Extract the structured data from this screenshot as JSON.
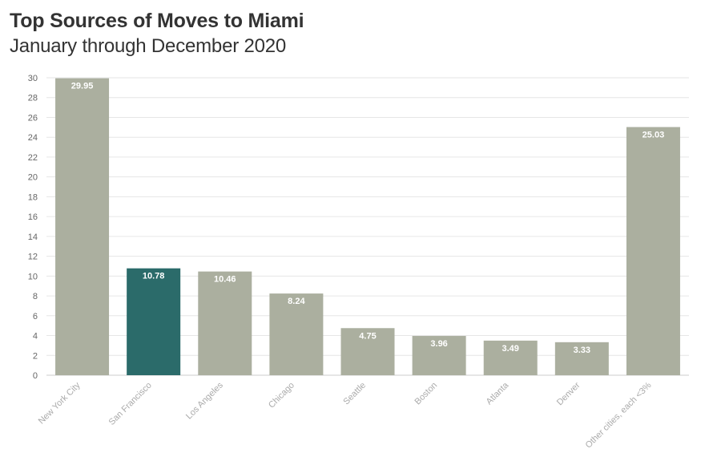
{
  "chart_data": {
    "type": "bar",
    "title": "Top Sources of Moves to Miami",
    "subtitle": "January through December 2020",
    "categories": [
      "New York City",
      "San Francisco",
      "Los Angeles",
      "Chicago",
      "Seattle",
      "Boston",
      "Atlanta",
      "Denver",
      "Other cities, each <3%"
    ],
    "values": [
      29.95,
      10.78,
      10.46,
      8.24,
      4.75,
      3.96,
      3.49,
      3.33,
      25.03
    ],
    "value_labels": [
      "29.95",
      "10.78",
      "10.46",
      "8.24",
      "4.75",
      "3.96",
      "3.49",
      "3.33",
      "25.03"
    ],
    "highlight_index": 1,
    "ylim": [
      0,
      30
    ],
    "yticks": [
      "0",
      "2",
      "4",
      "6",
      "8",
      "10",
      "12",
      "14",
      "16",
      "18",
      "20",
      "22",
      "24",
      "26",
      "28",
      "30"
    ],
    "grid": true,
    "colors": {
      "bar": "#abaf9f",
      "highlight": "#2b6b6a",
      "grid": "#e6e6e6",
      "axis": "#cccccc"
    },
    "xlabel": "",
    "ylabel": ""
  }
}
